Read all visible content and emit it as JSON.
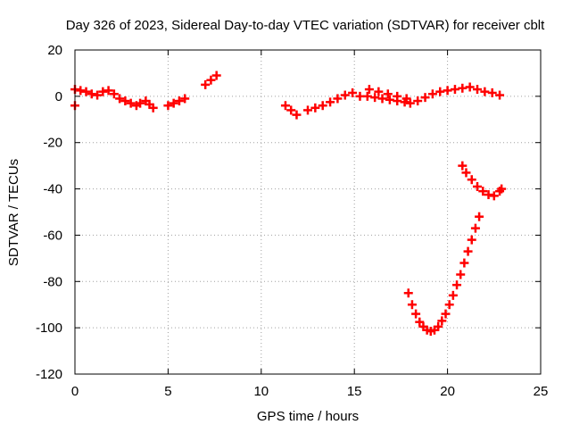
{
  "chart_data": {
    "type": "scatter",
    "title": "Day 326 of 2023, Sidereal Day-to-day VTEC variation (SDTVAR) for receiver cblt",
    "xlabel": "GPS time / hours",
    "ylabel": "SDTVAR / TECUs",
    "xlim": [
      0,
      25
    ],
    "ylim": [
      -120,
      20
    ],
    "x_ticks": [
      0,
      5,
      10,
      15,
      20,
      25
    ],
    "x_tick_labels": [
      "0",
      "5",
      "10",
      "15",
      "20",
      "25"
    ],
    "y_ticks": [
      20,
      0,
      -20,
      -40,
      -60,
      -80,
      -100,
      -120
    ],
    "y_tick_labels": [
      "20",
      "0",
      "-20",
      "-40",
      "-60",
      "-80",
      "-100",
      "-120"
    ],
    "grid": true,
    "series_color": "#ff0000",
    "series": [
      {
        "values": [
          [
            0.0,
            -4
          ],
          [
            0.0,
            3
          ],
          [
            0.3,
            2.5
          ],
          [
            0.6,
            2
          ],
          [
            0.9,
            1
          ],
          [
            1.2,
            0.5
          ],
          [
            1.5,
            2
          ],
          [
            1.8,
            2.5
          ],
          [
            2.1,
            1
          ],
          [
            2.4,
            -1
          ],
          [
            2.7,
            -2
          ],
          [
            3.0,
            -3
          ],
          [
            3.3,
            -4
          ],
          [
            3.5,
            -3
          ],
          [
            3.8,
            -2
          ],
          [
            4.0,
            -3.5
          ],
          [
            4.2,
            -5
          ],
          [
            5.0,
            -4
          ],
          [
            5.3,
            -3
          ],
          [
            5.6,
            -2
          ],
          [
            5.9,
            -1
          ],
          [
            7.0,
            5
          ],
          [
            7.3,
            7
          ],
          [
            7.6,
            9
          ],
          [
            11.3,
            -4
          ],
          [
            11.6,
            -6
          ],
          [
            11.9,
            -8
          ],
          [
            12.5,
            -6
          ],
          [
            12.9,
            -5
          ],
          [
            13.3,
            -4
          ],
          [
            13.7,
            -2.5
          ],
          [
            14.1,
            -1
          ],
          [
            14.5,
            0.5
          ],
          [
            14.9,
            1.5
          ],
          [
            15.3,
            0
          ],
          [
            15.7,
            0
          ],
          [
            16.1,
            -0.5
          ],
          [
            16.5,
            -1
          ],
          [
            16.9,
            -1.5
          ],
          [
            17.3,
            -2
          ],
          [
            17.7,
            -2.5
          ],
          [
            18.0,
            -3
          ],
          [
            18.4,
            -2
          ],
          [
            18.8,
            -0.5
          ],
          [
            19.2,
            1
          ],
          [
            19.6,
            2
          ],
          [
            20.0,
            2.5
          ],
          [
            20.4,
            3
          ],
          [
            20.8,
            3.5
          ],
          [
            21.2,
            4
          ],
          [
            21.6,
            3
          ],
          [
            22.0,
            2
          ],
          [
            22.4,
            1.5
          ],
          [
            22.8,
            0.5
          ],
          [
            15.8,
            3
          ],
          [
            16.3,
            2
          ],
          [
            16.8,
            1
          ],
          [
            17.3,
            0
          ],
          [
            17.8,
            -1
          ],
          [
            20.8,
            -30
          ],
          [
            21.0,
            -33
          ],
          [
            21.3,
            -36
          ],
          [
            21.6,
            -39
          ],
          [
            21.9,
            -41
          ],
          [
            22.2,
            -42.5
          ],
          [
            22.5,
            -43
          ],
          [
            22.8,
            -41
          ],
          [
            22.9,
            -40
          ],
          [
            17.9,
            -85
          ],
          [
            18.1,
            -90
          ],
          [
            18.3,
            -94
          ],
          [
            18.5,
            -97.5
          ],
          [
            18.7,
            -99.5
          ],
          [
            18.9,
            -101
          ],
          [
            19.1,
            -101.5
          ],
          [
            19.3,
            -101
          ],
          [
            19.5,
            -99.5
          ],
          [
            19.7,
            -97
          ],
          [
            19.9,
            -94
          ],
          [
            20.1,
            -90
          ],
          [
            20.3,
            -86
          ],
          [
            20.5,
            -81.5
          ],
          [
            20.7,
            -77
          ],
          [
            20.9,
            -72
          ],
          [
            21.1,
            -67
          ],
          [
            21.3,
            -62
          ],
          [
            21.5,
            -57
          ],
          [
            21.7,
            -52
          ]
        ]
      }
    ]
  }
}
